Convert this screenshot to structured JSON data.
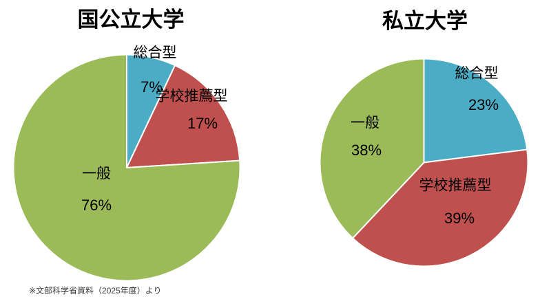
{
  "chart_data": [
    {
      "type": "pie",
      "title": "国公立大学",
      "labels": [
        "総合型",
        "学校推薦型",
        "一般"
      ],
      "values": [
        7,
        17,
        76
      ],
      "pct_labels": [
        "7%",
        "17%",
        "76%"
      ],
      "colors": [
        "#4BACC6",
        "#C0504D",
        "#9BBB59"
      ],
      "start_angle_deg": 0,
      "direction": "clockwise",
      "legend": "none"
    },
    {
      "type": "pie",
      "title": "私立大学",
      "labels": [
        "総合型",
        "学校推薦型",
        "一般"
      ],
      "values": [
        23,
        39,
        38
      ],
      "pct_labels": [
        "23%",
        "39%",
        "38%"
      ],
      "colors": [
        "#4BACC6",
        "#C0504D",
        "#9BBB59"
      ],
      "start_angle_deg": 0,
      "direction": "clockwise",
      "legend": "none"
    }
  ],
  "footer": "※文部科学省資料（2025年度）より"
}
